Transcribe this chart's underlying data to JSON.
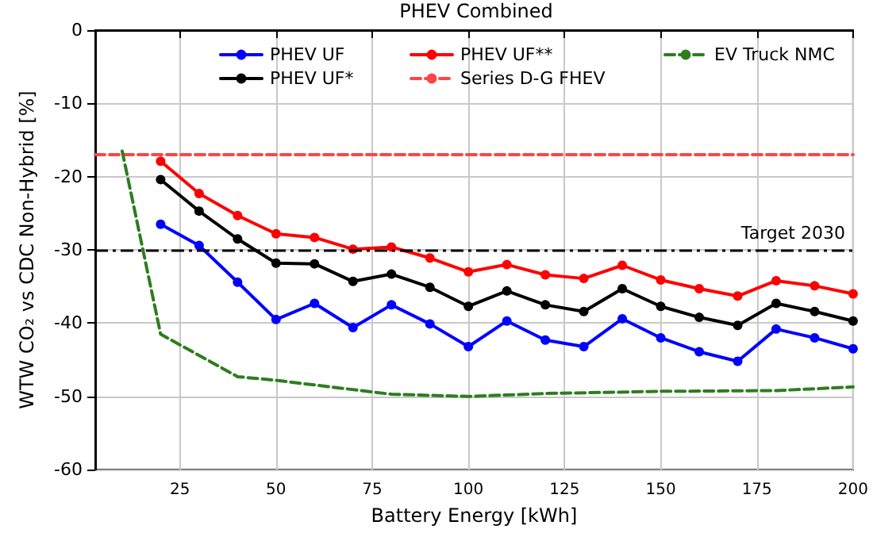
{
  "chart_data": {
    "type": "line",
    "title": "PHEV Combined",
    "xlabel": "Battery Energy [kWh]",
    "ylabel": "WTW CO₂ vs CDC Non-Hybrid [%]",
    "x": [
      20,
      30,
      40,
      50,
      60,
      70,
      80,
      90,
      100,
      110,
      120,
      130,
      140,
      150,
      160,
      170,
      180,
      190,
      200
    ],
    "series": [
      {
        "name": "PHEV UF",
        "color": "#0000ff",
        "values": [
          -26.5,
          -29.4,
          -34.4,
          -39.5,
          -37.3,
          -40.6,
          -37.5,
          -40.1,
          -43.2,
          -39.7,
          -42.3,
          -43.2,
          -39.4,
          -42.0,
          -43.9,
          -45.2,
          -40.8,
          -42.0,
          -43.5
        ]
      },
      {
        "name": "PHEV UF*",
        "color": "#000000",
        "values": [
          -20.4,
          -24.7,
          -28.5,
          -31.8,
          -31.9,
          -34.3,
          -33.3,
          -35.1,
          -37.7,
          -35.6,
          -37.5,
          -38.4,
          -35.3,
          -37.7,
          -39.2,
          -40.3,
          -37.3,
          -38.4,
          -39.7
        ]
      },
      {
        "name": "PHEV UF**",
        "color": "#ff0000",
        "values": [
          -17.9,
          -22.3,
          -25.3,
          -27.8,
          -28.3,
          -29.9,
          -29.6,
          -31.1,
          -33.0,
          -32.0,
          -33.4,
          -33.9,
          -32.1,
          -34.1,
          -35.3,
          -36.3,
          -34.2,
          -34.9,
          -36.0
        ]
      },
      {
        "name": "Series D-G FHEV",
        "color": "#ff4444",
        "x": [
          3,
          200
        ],
        "values": [
          -17,
          -17
        ],
        "line_style": "dashed",
        "marker": "none"
      },
      {
        "name": "EV Truck NMC",
        "color": "#2e7d1e",
        "x": [
          10,
          20,
          40,
          50,
          80,
          100,
          120,
          150,
          180,
          200
        ],
        "values": [
          -16.5,
          -41.5,
          -47.3,
          -47.8,
          -49.7,
          -50.0,
          -49.6,
          -49.3,
          -49.2,
          -48.7
        ],
        "line_style": "dashed",
        "marker": "none"
      }
    ],
    "ref_lines": [
      {
        "axis": "y",
        "value": -30,
        "label": "Target 2030",
        "color": "#000000",
        "line_style": "dashdot"
      }
    ],
    "xlim": [
      3,
      200
    ],
    "xticks": [
      25,
      50,
      75,
      100,
      125,
      150,
      175,
      200
    ],
    "ylim": [
      -60,
      0
    ],
    "yticks": [
      -60,
      -50,
      -40,
      -30,
      -20,
      -10,
      0
    ],
    "grid": true,
    "legend": "top right",
    "marker": "circle",
    "line_style": "solid"
  }
}
